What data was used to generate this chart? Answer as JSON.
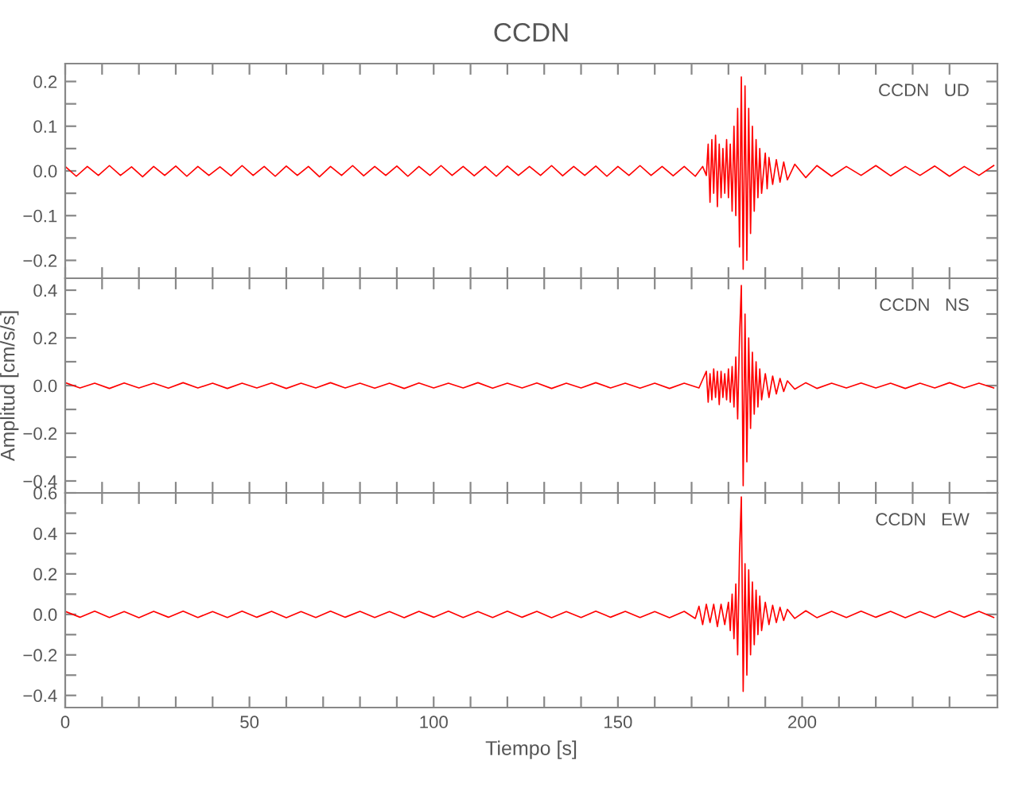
{
  "chart_data": [
    {
      "type": "line",
      "title": "CCDN",
      "annotations": [
        "CCDN   UD"
      ],
      "xlim": [
        0,
        253
      ],
      "ylim": [
        -0.24,
        0.24
      ],
      "tick_labels": "y",
      "grid": false,
      "legend": false,
      "marker": "none",
      "line_style": "solid",
      "xticks": [
        0,
        {
          "value": 10,
          "label": null
        },
        {
          "value": 20,
          "label": null
        },
        {
          "value": 30,
          "label": null
        },
        {
          "value": 40,
          "label": null
        },
        50,
        {
          "value": 60,
          "label": null
        },
        {
          "value": 70,
          "label": null
        },
        {
          "value": 80,
          "label": null
        },
        {
          "value": 90,
          "label": null
        },
        100,
        {
          "value": 110,
          "label": null
        },
        {
          "value": 120,
          "label": null
        },
        {
          "value": 130,
          "label": null
        },
        {
          "value": 140,
          "label": null
        },
        150,
        {
          "value": 160,
          "label": null
        },
        {
          "value": 170,
          "label": null
        },
        {
          "value": 180,
          "label": null
        },
        {
          "value": 190,
          "label": null
        },
        200,
        {
          "value": 210,
          "label": null
        },
        {
          "value": 220,
          "label": null
        },
        {
          "value": 230,
          "label": null
        },
        {
          "value": 240,
          "label": null
        }
      ],
      "yticks": [
        {
          "value": -0.2,
          "label": "−0.2"
        },
        {
          "value": -0.15,
          "label": null
        },
        {
          "value": -0.1,
          "label": "−0.1"
        },
        {
          "value": -0.05,
          "label": null
        },
        {
          "value": 0.0,
          "label": "0.0"
        },
        {
          "value": 0.05,
          "label": null
        },
        0.1,
        {
          "value": 0.15,
          "label": null
        },
        0.2
      ],
      "series": [
        {
          "color": "#ff0000",
          "x": [
            0,
            3,
            6,
            9,
            12,
            15,
            18,
            21,
            24,
            27,
            30,
            33,
            36,
            39,
            42,
            45,
            48,
            51,
            54,
            57,
            60,
            63,
            66,
            69,
            72,
            75,
            78,
            81,
            84,
            87,
            90,
            93,
            96,
            99,
            102,
            105,
            108,
            111,
            114,
            117,
            120,
            123,
            126,
            129,
            132,
            135,
            138,
            141,
            144,
            147,
            150,
            153,
            156,
            159,
            162,
            165,
            168,
            171,
            173,
            174,
            174.5,
            175,
            175.5,
            176,
            176.5,
            177,
            177.5,
            178,
            178.5,
            179,
            179.5,
            180,
            180.5,
            181,
            181.5,
            182,
            182.5,
            183,
            183.5,
            184,
            184.5,
            185,
            185.5,
            186,
            186.5,
            187,
            187.5,
            188,
            188.5,
            189,
            190,
            190.5,
            191,
            192,
            193,
            194,
            195,
            196,
            198,
            201,
            204,
            208,
            212,
            216,
            220,
            224,
            228,
            232,
            236,
            240,
            244,
            248,
            252
          ],
          "values": [
            0.01,
            -0.012,
            0.01,
            -0.01,
            0.012,
            -0.01,
            0.009,
            -0.013,
            0.01,
            -0.01,
            0.011,
            -0.012,
            0.01,
            -0.01,
            0.009,
            -0.011,
            0.012,
            -0.01,
            0.01,
            -0.012,
            0.011,
            -0.01,
            0.01,
            -0.013,
            0.01,
            -0.01,
            0.012,
            -0.011,
            0.01,
            -0.01,
            0.011,
            -0.012,
            0.01,
            -0.01,
            0.012,
            -0.01,
            0.01,
            -0.011,
            0.01,
            -0.012,
            0.011,
            -0.01,
            0.01,
            -0.01,
            0.012,
            -0.011,
            0.01,
            -0.01,
            0.011,
            -0.012,
            0.01,
            -0.01,
            0.012,
            -0.01,
            0.01,
            -0.011,
            0.01,
            -0.012,
            0.01,
            -0.01,
            0.06,
            -0.07,
            0.07,
            -0.05,
            0.08,
            -0.08,
            0.06,
            -0.06,
            0.05,
            -0.05,
            0.07,
            -0.06,
            0.06,
            -0.09,
            0.1,
            -0.1,
            0.14,
            -0.17,
            0.21,
            -0.22,
            0.19,
            -0.2,
            0.14,
            -0.14,
            0.1,
            -0.09,
            0.07,
            -0.06,
            0.05,
            -0.05,
            0.04,
            -0.04,
            0.03,
            -0.03,
            0.025,
            -0.025,
            0.02,
            -0.02,
            0.015,
            -0.015,
            0.012,
            -0.012,
            0.01,
            -0.01,
            0.012,
            -0.011,
            0.01,
            -0.01,
            0.011,
            -0.012,
            0.01,
            -0.01,
            0.012
          ]
        }
      ]
    },
    {
      "type": "line",
      "ylabel": "Amplitud [cm/s/s]",
      "annotations": [
        "CCDN   NS"
      ],
      "xlim": [
        0,
        253
      ],
      "ylim": [
        -0.45,
        0.45
      ],
      "tick_labels": "y",
      "grid": false,
      "legend": false,
      "marker": "none",
      "line_style": "solid",
      "xticks": [
        0,
        {
          "value": 10,
          "label": null
        },
        {
          "value": 20,
          "label": null
        },
        {
          "value": 30,
          "label": null
        },
        {
          "value": 40,
          "label": null
        },
        50,
        {
          "value": 60,
          "label": null
        },
        {
          "value": 70,
          "label": null
        },
        {
          "value": 80,
          "label": null
        },
        {
          "value": 90,
          "label": null
        },
        100,
        {
          "value": 110,
          "label": null
        },
        {
          "value": 120,
          "label": null
        },
        {
          "value": 130,
          "label": null
        },
        {
          "value": 140,
          "label": null
        },
        150,
        {
          "value": 160,
          "label": null
        },
        {
          "value": 170,
          "label": null
        },
        {
          "value": 180,
          "label": null
        },
        {
          "value": 190,
          "label": null
        },
        200,
        {
          "value": 210,
          "label": null
        },
        {
          "value": 220,
          "label": null
        },
        {
          "value": 230,
          "label": null
        },
        {
          "value": 240,
          "label": null
        }
      ],
      "yticks": [
        {
          "value": -0.4,
          "label": "−0.4"
        },
        {
          "value": -0.3,
          "label": null
        },
        {
          "value": -0.2,
          "label": "−0.2"
        },
        {
          "value": -0.1,
          "label": null
        },
        {
          "value": 0.0,
          "label": "0.0"
        },
        {
          "value": 0.1,
          "label": null
        },
        0.2,
        {
          "value": 0.3,
          "label": null
        },
        0.4
      ],
      "series": [
        {
          "color": "#ff0000",
          "x": [
            0,
            4,
            8,
            12,
            16,
            20,
            24,
            28,
            32,
            36,
            40,
            44,
            48,
            52,
            56,
            60,
            64,
            68,
            72,
            76,
            80,
            84,
            88,
            92,
            96,
            100,
            104,
            108,
            112,
            116,
            120,
            124,
            128,
            132,
            136,
            140,
            144,
            148,
            152,
            156,
            160,
            164,
            168,
            172,
            174,
            174.5,
            175,
            175.5,
            176,
            176.5,
            177,
            177.5,
            178,
            178.5,
            179,
            179.5,
            180,
            180.5,
            181,
            181.5,
            182,
            182.5,
            183,
            183.5,
            184,
            184.5,
            185,
            185.5,
            186,
            186.5,
            187,
            187.5,
            188,
            188.5,
            189,
            190,
            191,
            192,
            193,
            194,
            195,
            196,
            198,
            201,
            204,
            208,
            212,
            216,
            220,
            224,
            228,
            232,
            236,
            240,
            244,
            248,
            252
          ],
          "values": [
            0.012,
            -0.01,
            0.01,
            -0.012,
            0.011,
            -0.01,
            0.01,
            -0.011,
            0.012,
            -0.01,
            0.01,
            -0.012,
            0.01,
            -0.01,
            0.011,
            -0.012,
            0.01,
            -0.01,
            0.012,
            -0.01,
            0.01,
            -0.011,
            0.01,
            -0.012,
            0.011,
            -0.01,
            0.01,
            -0.01,
            0.012,
            -0.011,
            0.01,
            -0.01,
            0.011,
            -0.012,
            0.01,
            -0.01,
            0.012,
            -0.01,
            0.01,
            -0.011,
            0.01,
            -0.012,
            0.01,
            -0.01,
            0.06,
            -0.07,
            0.05,
            -0.06,
            0.07,
            -0.05,
            0.06,
            -0.08,
            0.06,
            -0.05,
            0.05,
            -0.06,
            0.07,
            -0.07,
            0.08,
            -0.09,
            0.12,
            -0.14,
            0.2,
            0.42,
            -0.42,
            0.3,
            -0.32,
            0.2,
            -0.18,
            0.14,
            -0.12,
            0.1,
            -0.09,
            0.07,
            -0.06,
            0.05,
            -0.05,
            0.04,
            -0.035,
            0.03,
            -0.025,
            0.02,
            -0.015,
            0.012,
            -0.012,
            0.01,
            -0.01,
            0.011,
            -0.01,
            0.01,
            -0.012,
            0.01,
            -0.01,
            0.012,
            -0.01,
            0.01,
            -0.01
          ]
        }
      ]
    },
    {
      "type": "line",
      "xlabel": "Tiempo [s]",
      "annotations": [
        "CCDN   EW"
      ],
      "xlim": [
        0,
        253
      ],
      "ylim": [
        -0.46,
        0.6
      ],
      "grid": false,
      "legend": false,
      "marker": "none",
      "line_style": "solid",
      "xticks": [
        0,
        {
          "value": 10,
          "label": null
        },
        {
          "value": 20,
          "label": null
        },
        {
          "value": 30,
          "label": null
        },
        {
          "value": 40,
          "label": null
        },
        50,
        {
          "value": 60,
          "label": null
        },
        {
          "value": 70,
          "label": null
        },
        {
          "value": 80,
          "label": null
        },
        {
          "value": 90,
          "label": null
        },
        100,
        {
          "value": 110,
          "label": null
        },
        {
          "value": 120,
          "label": null
        },
        {
          "value": 130,
          "label": null
        },
        {
          "value": 140,
          "label": null
        },
        150,
        {
          "value": 160,
          "label": null
        },
        {
          "value": 170,
          "label": null
        },
        {
          "value": 180,
          "label": null
        },
        {
          "value": 190,
          "label": null
        },
        200,
        {
          "value": 210,
          "label": null
        },
        {
          "value": 220,
          "label": null
        },
        {
          "value": 230,
          "label": null
        },
        {
          "value": 240,
          "label": null
        }
      ],
      "yticks": [
        {
          "value": -0.4,
          "label": "−0.4"
        },
        {
          "value": -0.3,
          "label": null
        },
        {
          "value": -0.2,
          "label": "−0.2"
        },
        {
          "value": -0.1,
          "label": null
        },
        {
          "value": 0.0,
          "label": "0.0"
        },
        {
          "value": 0.1,
          "label": null
        },
        0.2,
        {
          "value": 0.3,
          "label": null
        },
        0.4,
        {
          "value": 0.5,
          "label": null
        },
        0.6
      ],
      "series": [
        {
          "color": "#ff0000",
          "x": [
            0,
            4,
            8,
            12,
            16,
            20,
            24,
            28,
            32,
            36,
            40,
            44,
            48,
            52,
            56,
            60,
            64,
            68,
            72,
            76,
            80,
            84,
            88,
            92,
            96,
            100,
            104,
            108,
            112,
            116,
            120,
            124,
            128,
            132,
            136,
            140,
            144,
            148,
            152,
            156,
            160,
            164,
            168,
            171,
            172,
            173,
            174,
            175,
            176,
            177,
            178,
            179,
            180,
            180.5,
            181,
            181.5,
            182,
            182.5,
            183,
            183.5,
            184,
            184.5,
            185,
            185.5,
            186,
            186.5,
            187,
            187.5,
            188,
            188.5,
            189,
            190,
            191,
            192,
            193,
            194,
            195,
            196,
            198,
            201,
            204,
            208,
            212,
            216,
            220,
            224,
            228,
            232,
            236,
            240,
            244,
            248,
            252
          ],
          "values": [
            0.015,
            -0.014,
            0.016,
            -0.015,
            0.014,
            -0.016,
            0.015,
            -0.014,
            0.016,
            -0.015,
            0.014,
            -0.015,
            0.016,
            -0.014,
            0.015,
            -0.016,
            0.014,
            -0.015,
            0.016,
            -0.014,
            0.015,
            -0.015,
            0.014,
            -0.016,
            0.015,
            -0.014,
            0.016,
            -0.015,
            0.014,
            -0.015,
            0.016,
            -0.014,
            0.015,
            -0.016,
            0.014,
            -0.015,
            0.016,
            -0.014,
            0.015,
            -0.015,
            0.014,
            -0.016,
            0.015,
            -0.02,
            0.04,
            -0.05,
            0.05,
            -0.04,
            0.05,
            -0.06,
            0.05,
            -0.05,
            0.06,
            -0.08,
            0.1,
            -0.12,
            0.15,
            -0.2,
            0.3,
            0.58,
            -0.38,
            0.25,
            -0.3,
            0.22,
            -0.2,
            0.16,
            -0.15,
            0.12,
            -0.1,
            0.09,
            -0.08,
            0.06,
            -0.05,
            0.045,
            -0.04,
            0.035,
            -0.03,
            0.025,
            -0.02,
            0.018,
            -0.016,
            0.015,
            -0.015,
            0.016,
            -0.014,
            0.015,
            -0.016,
            0.014,
            -0.015,
            0.016,
            -0.014,
            0.015,
            -0.015
          ]
        }
      ]
    }
  ]
}
